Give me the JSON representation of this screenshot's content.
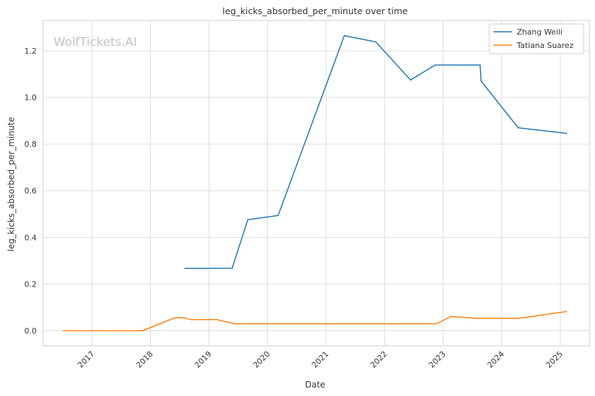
{
  "chart_data": {
    "type": "line",
    "title": "leg_kicks_absorbed_per_minute over time",
    "xlabel": "Date",
    "ylabel": "leg_kicks_absorbed_per_minute",
    "watermark": "WolfTickets.AI",
    "x_ticks": [
      "2017",
      "2018",
      "2019",
      "2020",
      "2021",
      "2022",
      "2023",
      "2024",
      "2025"
    ],
    "y_ticks": [
      "0.0",
      "0.2",
      "0.4",
      "0.6",
      "0.8",
      "1.0",
      "1.2"
    ],
    "xlim": [
      "2016-03-01",
      "2025-07-01"
    ],
    "ylim": [
      -0.065,
      1.33
    ],
    "grid": true,
    "legend_position": "top-right",
    "series": [
      {
        "name": "Zhang Weili",
        "color": "#1f77b4",
        "points": [
          [
            "2018-08-04",
            0.267
          ],
          [
            "2018-11-24",
            0.267
          ],
          [
            "2019-05-25",
            0.268
          ],
          [
            "2019-08-31",
            0.476
          ],
          [
            "2020-03-07",
            0.494
          ],
          [
            "2021-04-24",
            1.265
          ],
          [
            "2021-11-06",
            1.238
          ],
          [
            "2022-06-11",
            1.075
          ],
          [
            "2022-11-12",
            1.139
          ],
          [
            "2023-08-19",
            1.139
          ],
          [
            "2023-08-26",
            1.07
          ],
          [
            "2024-04-13",
            0.87
          ],
          [
            "2025-02-08",
            0.846
          ]
        ]
      },
      {
        "name": "Tatiana Suarez",
        "color": "#ff7f0e",
        "points": [
          [
            "2016-07-07",
            0.0
          ],
          [
            "2017-02-01",
            0.0
          ],
          [
            "2017-11-11",
            0.0
          ],
          [
            "2018-06-01",
            0.055
          ],
          [
            "2018-08-01",
            0.055
          ],
          [
            "2018-09-08",
            0.048
          ],
          [
            "2019-02-17",
            0.048
          ],
          [
            "2019-06-08",
            0.03
          ],
          [
            "2022-11-20",
            0.03
          ],
          [
            "2023-02-18",
            0.061
          ],
          [
            "2023-08-05",
            0.053
          ],
          [
            "2024-04-13",
            0.053
          ],
          [
            "2025-02-08",
            0.082
          ]
        ]
      }
    ]
  }
}
